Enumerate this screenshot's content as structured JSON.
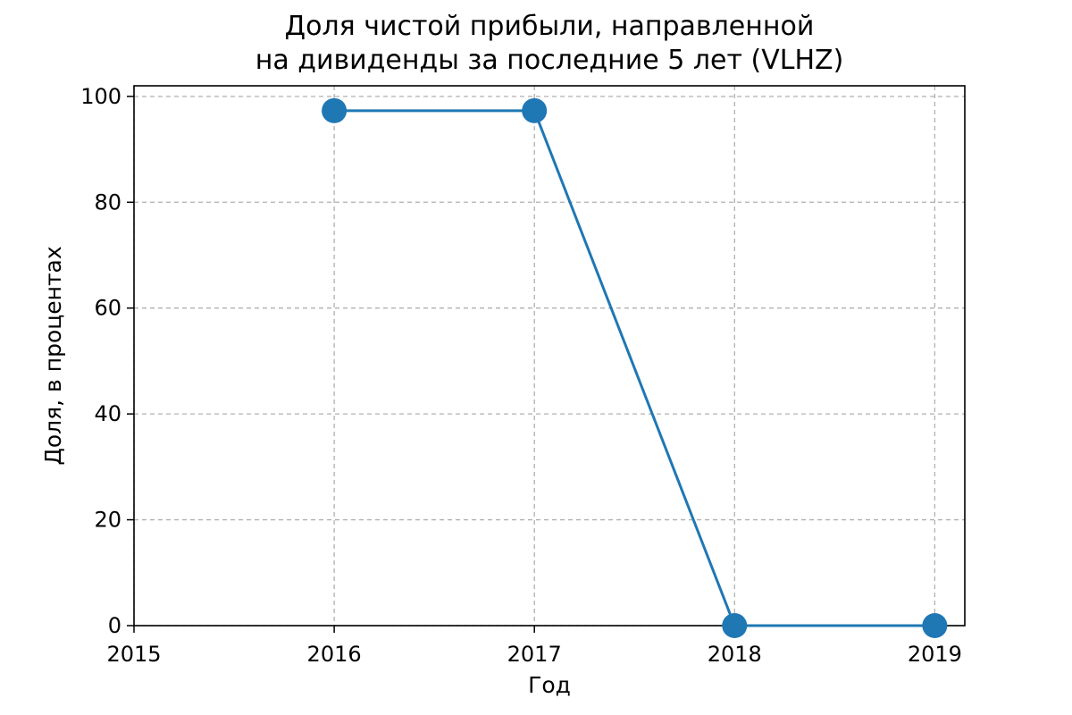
{
  "chart_data": {
    "type": "line",
    "title": [
      "Доля чистой прибыли, направленной",
      "на дивиденды за последние 5 лет (VLHZ)"
    ],
    "xlabel": "Год",
    "ylabel": "Доля, в процентах",
    "x": [
      2016,
      2017,
      2018,
      2019
    ],
    "series": [
      {
        "values": [
          97.3,
          97.3,
          0,
          0
        ]
      }
    ],
    "xlim": [
      2015,
      2019.15
    ],
    "ylim": [
      0,
      102
    ],
    "xticks": [
      "2015",
      "2016",
      "2017",
      "2018",
      "2019"
    ],
    "yticks": [
      "0",
      "20",
      "40",
      "60",
      "80",
      "100"
    ],
    "grid": true,
    "legend": "none",
    "colors": {
      "line": "#1f77b4",
      "grid": "#b0b0b0",
      "axis": "#000000"
    }
  }
}
